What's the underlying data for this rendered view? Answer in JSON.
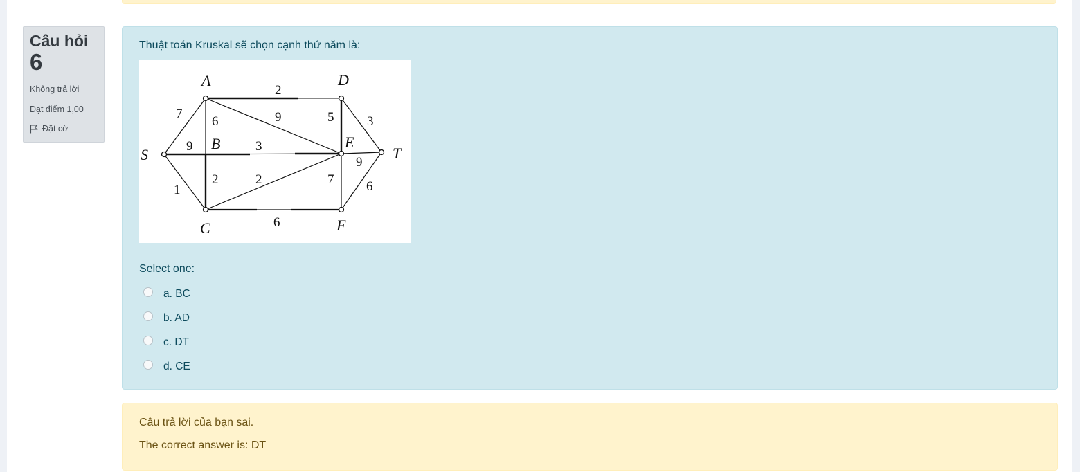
{
  "question": {
    "info": {
      "title": "Câu hỏi",
      "number": "6",
      "state": "Không trả lời",
      "grade": "Đạt điểm 1,00",
      "flag_label": "Đặt cờ"
    },
    "text": "Thuật toán Kruskal sẽ chọn cạnh thứ năm là:",
    "figure": {
      "nodes": [
        {
          "label": "A"
        },
        {
          "label": "D"
        },
        {
          "label": "S"
        },
        {
          "label": "B"
        },
        {
          "label": "E"
        },
        {
          "label": "T"
        },
        {
          "label": "C"
        },
        {
          "label": "F"
        }
      ],
      "edge_weights": [
        {
          "edge": "AD",
          "weight": "2"
        },
        {
          "edge": "SA",
          "weight": "7"
        },
        {
          "edge": "AB",
          "weight": "6"
        },
        {
          "edge": "AE",
          "weight": "9"
        },
        {
          "edge": "DE",
          "weight": "5"
        },
        {
          "edge": "DT",
          "weight": "3"
        },
        {
          "edge": "SB",
          "weight": "9"
        },
        {
          "edge": "BE",
          "weight": "3"
        },
        {
          "edge": "ET",
          "weight": "9"
        },
        {
          "edge": "SC",
          "weight": "1"
        },
        {
          "edge": "BC",
          "weight": "2"
        },
        {
          "edge": "CE",
          "weight": "2"
        },
        {
          "edge": "EF",
          "weight": "7"
        },
        {
          "edge": "TF",
          "weight": "6"
        },
        {
          "edge": "CF",
          "weight": "6"
        }
      ]
    },
    "prompt": "Select one:",
    "options": [
      {
        "label": "a. BC"
      },
      {
        "label": "b. AD"
      },
      {
        "label": "c. DT"
      },
      {
        "label": "d. CE"
      }
    ]
  },
  "feedback": {
    "result": "Câu trả lời của bạn sai.",
    "correct": "The correct answer is: DT"
  }
}
